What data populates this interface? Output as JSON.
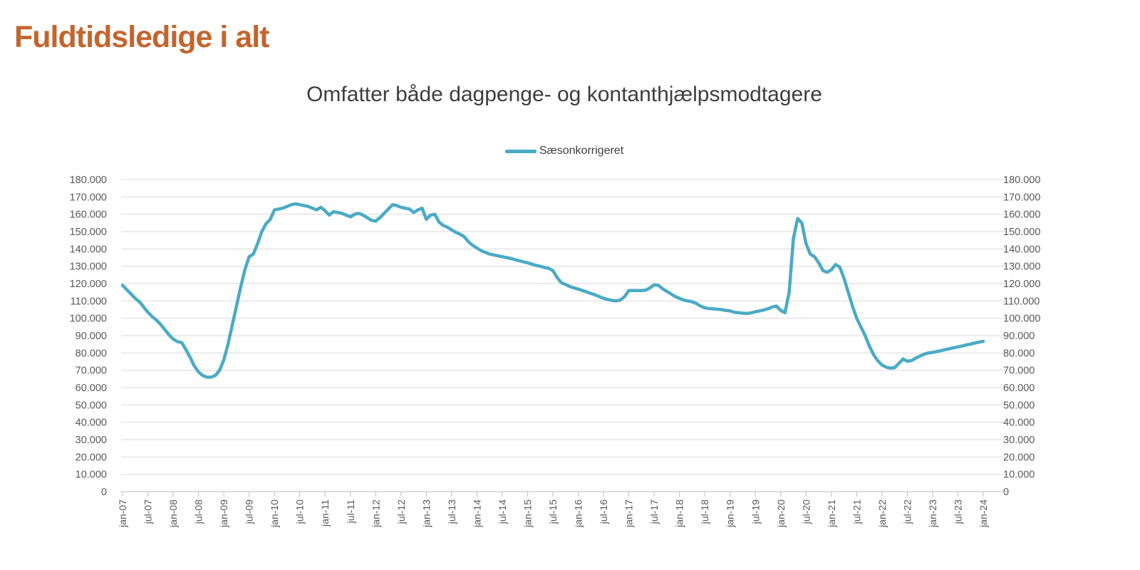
{
  "header": {
    "title": "Fuldtidsledige i alt"
  },
  "chart": {
    "subtitle": "Omfatter både dagpenge- og kontanthjælpsmodtagere",
    "legend": {
      "label": "Sæsonkorrigeret"
    }
  },
  "colors": {
    "background": "#FFFFFF",
    "series_line": "#4AABC5",
    "title_text": "#C2662E",
    "subtitle_text": "#3E3E3E",
    "legend_text": "#404040",
    "axis_text": "#595959",
    "gridline": "#D9D9D9",
    "axis_line": "#BFBFBF"
  },
  "chart_data": {
    "type": "line",
    "title": "Omfatter både dagpenge- og kontanthjælpsmodtagere",
    "legend_position": "top-center",
    "grid": true,
    "ylim": [
      0,
      180000
    ],
    "y_tick_interval": 10000,
    "y_axis_sides": [
      "left",
      "right"
    ],
    "y_tick_labels": [
      "0",
      "10.000",
      "20.000",
      "30.000",
      "40.000",
      "50.000",
      "60.000",
      "70.000",
      "80.000",
      "90.000",
      "100.000",
      "110.000",
      "120.000",
      "130.000",
      "140.000",
      "150.000",
      "160.000",
      "170.000",
      "180.000"
    ],
    "x_frequency": "monthly",
    "x_start": "jan-07",
    "x_end": "jan-24",
    "x_tick_labels": [
      "jan-07",
      "jul-07",
      "jan-08",
      "jul-08",
      "jan-09",
      "jul-09",
      "jan-10",
      "jul-10",
      "jan-11",
      "jul-11",
      "jan-12",
      "jul-12",
      "jan-13",
      "jul-13",
      "jan-14",
      "jul-14",
      "jan-15",
      "jul-15",
      "jan-16",
      "jul-16",
      "jan-17",
      "jul-17",
      "jan-18",
      "jul-18",
      "jan-19",
      "jul-19",
      "jan-20",
      "jul-20",
      "jan-21",
      "jul-21",
      "jan-22",
      "jul-22",
      "jan-23",
      "jul-23",
      "jan-24"
    ],
    "series": [
      {
        "name": "Sæsonkorrigeret",
        "color": "#4AABC5",
        "values": [
          119000,
          116500,
          114000,
          111500,
          109500,
          106500,
          103500,
          101000,
          99000,
          96500,
          93500,
          90500,
          88000,
          86500,
          86000,
          82000,
          77500,
          72500,
          69000,
          67000,
          66000,
          66000,
          67000,
          70000,
          76000,
          85000,
          96000,
          107000,
          118000,
          128000,
          135500,
          137000,
          143000,
          150000,
          154500,
          157000,
          162500,
          163000,
          163500,
          164500,
          165500,
          166000,
          165500,
          165000,
          164500,
          163500,
          162500,
          164000,
          162000,
          159500,
          161500,
          161000,
          160500,
          159500,
          158500,
          160000,
          160500,
          159500,
          158000,
          156500,
          156000,
          158000,
          160500,
          163000,
          165500,
          165000,
          164000,
          163500,
          163000,
          161000,
          162500,
          163500,
          157000,
          159500,
          160000,
          155500,
          153500,
          152500,
          151000,
          149500,
          148500,
          147000,
          144000,
          142000,
          140500,
          139000,
          138000,
          137000,
          136500,
          136000,
          135500,
          135000,
          134500,
          133800,
          133200,
          132500,
          132000,
          131200,
          130500,
          130000,
          129300,
          128800,
          127500,
          123500,
          120500,
          119500,
          118300,
          117500,
          116800,
          116000,
          115200,
          114300,
          113500,
          112500,
          111500,
          110800,
          110300,
          110000,
          110500,
          112500,
          116000,
          116000,
          116000,
          116000,
          116200,
          117500,
          119300,
          119000,
          117000,
          115500,
          114000,
          112500,
          111500,
          110500,
          110000,
          109500,
          108500,
          107000,
          106000,
          105600,
          105400,
          105200,
          105000,
          104500,
          104300,
          103400,
          103200,
          102900,
          102800,
          103100,
          103800,
          104200,
          104800,
          105500,
          106500,
          107000,
          104500,
          103200,
          115000,
          146000,
          157500,
          155000,
          143000,
          137000,
          135500,
          132000,
          127500,
          126500,
          128000,
          131000,
          129500,
          123000,
          115000,
          107000,
          100000,
          95000,
          90000,
          84000,
          79000,
          75500,
          73000,
          71800,
          71200,
          71500,
          74000,
          76500,
          75200,
          75600,
          77000,
          78200,
          79300,
          80000,
          80300,
          80800,
          81300,
          81900,
          82400,
          83000,
          83500,
          84000,
          84600,
          85100,
          85700,
          86200,
          86700
        ]
      }
    ]
  }
}
